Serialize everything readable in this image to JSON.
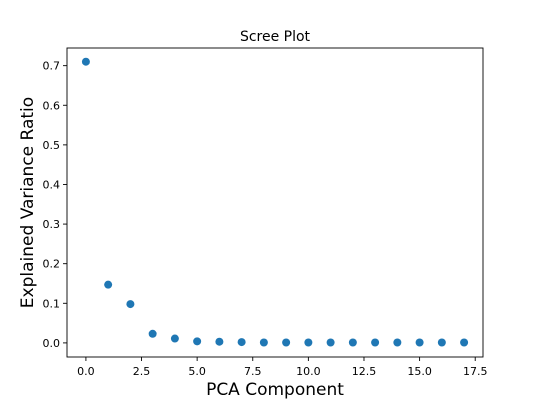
{
  "chart_data": {
    "type": "scatter",
    "title": "Scree Plot",
    "xlabel": "PCA Component",
    "ylabel": "Explained Variance Ratio",
    "xlim": [
      -0.85,
      17.85
    ],
    "ylim": [
      -0.0356,
      0.7446
    ],
    "xticks": [
      0.0,
      2.5,
      5.0,
      7.5,
      10.0,
      12.5,
      15.0,
      17.5
    ],
    "xtick_labels": [
      "0.0",
      "2.5",
      "5.0",
      "7.5",
      "10.0",
      "12.5",
      "15.0",
      "17.5"
    ],
    "yticks": [
      0.0,
      0.1,
      0.2,
      0.3,
      0.4,
      0.5,
      0.6,
      0.7
    ],
    "ytick_labels": [
      "0.0",
      "0.1",
      "0.2",
      "0.3",
      "0.4",
      "0.5",
      "0.6",
      "0.7"
    ],
    "grid": false,
    "marker_color": "#1f77b4",
    "x": [
      0,
      1,
      2,
      3,
      4,
      5,
      6,
      7,
      8,
      9,
      10,
      11,
      12,
      13,
      14,
      15,
      16,
      17
    ],
    "y": [
      0.71,
      0.147,
      0.098,
      0.023,
      0.011,
      0.004,
      0.003,
      0.002,
      0.001,
      0.001,
      0.001,
      0.001,
      0.001,
      0.001,
      0.001,
      0.001,
      0.001,
      0.001
    ]
  }
}
